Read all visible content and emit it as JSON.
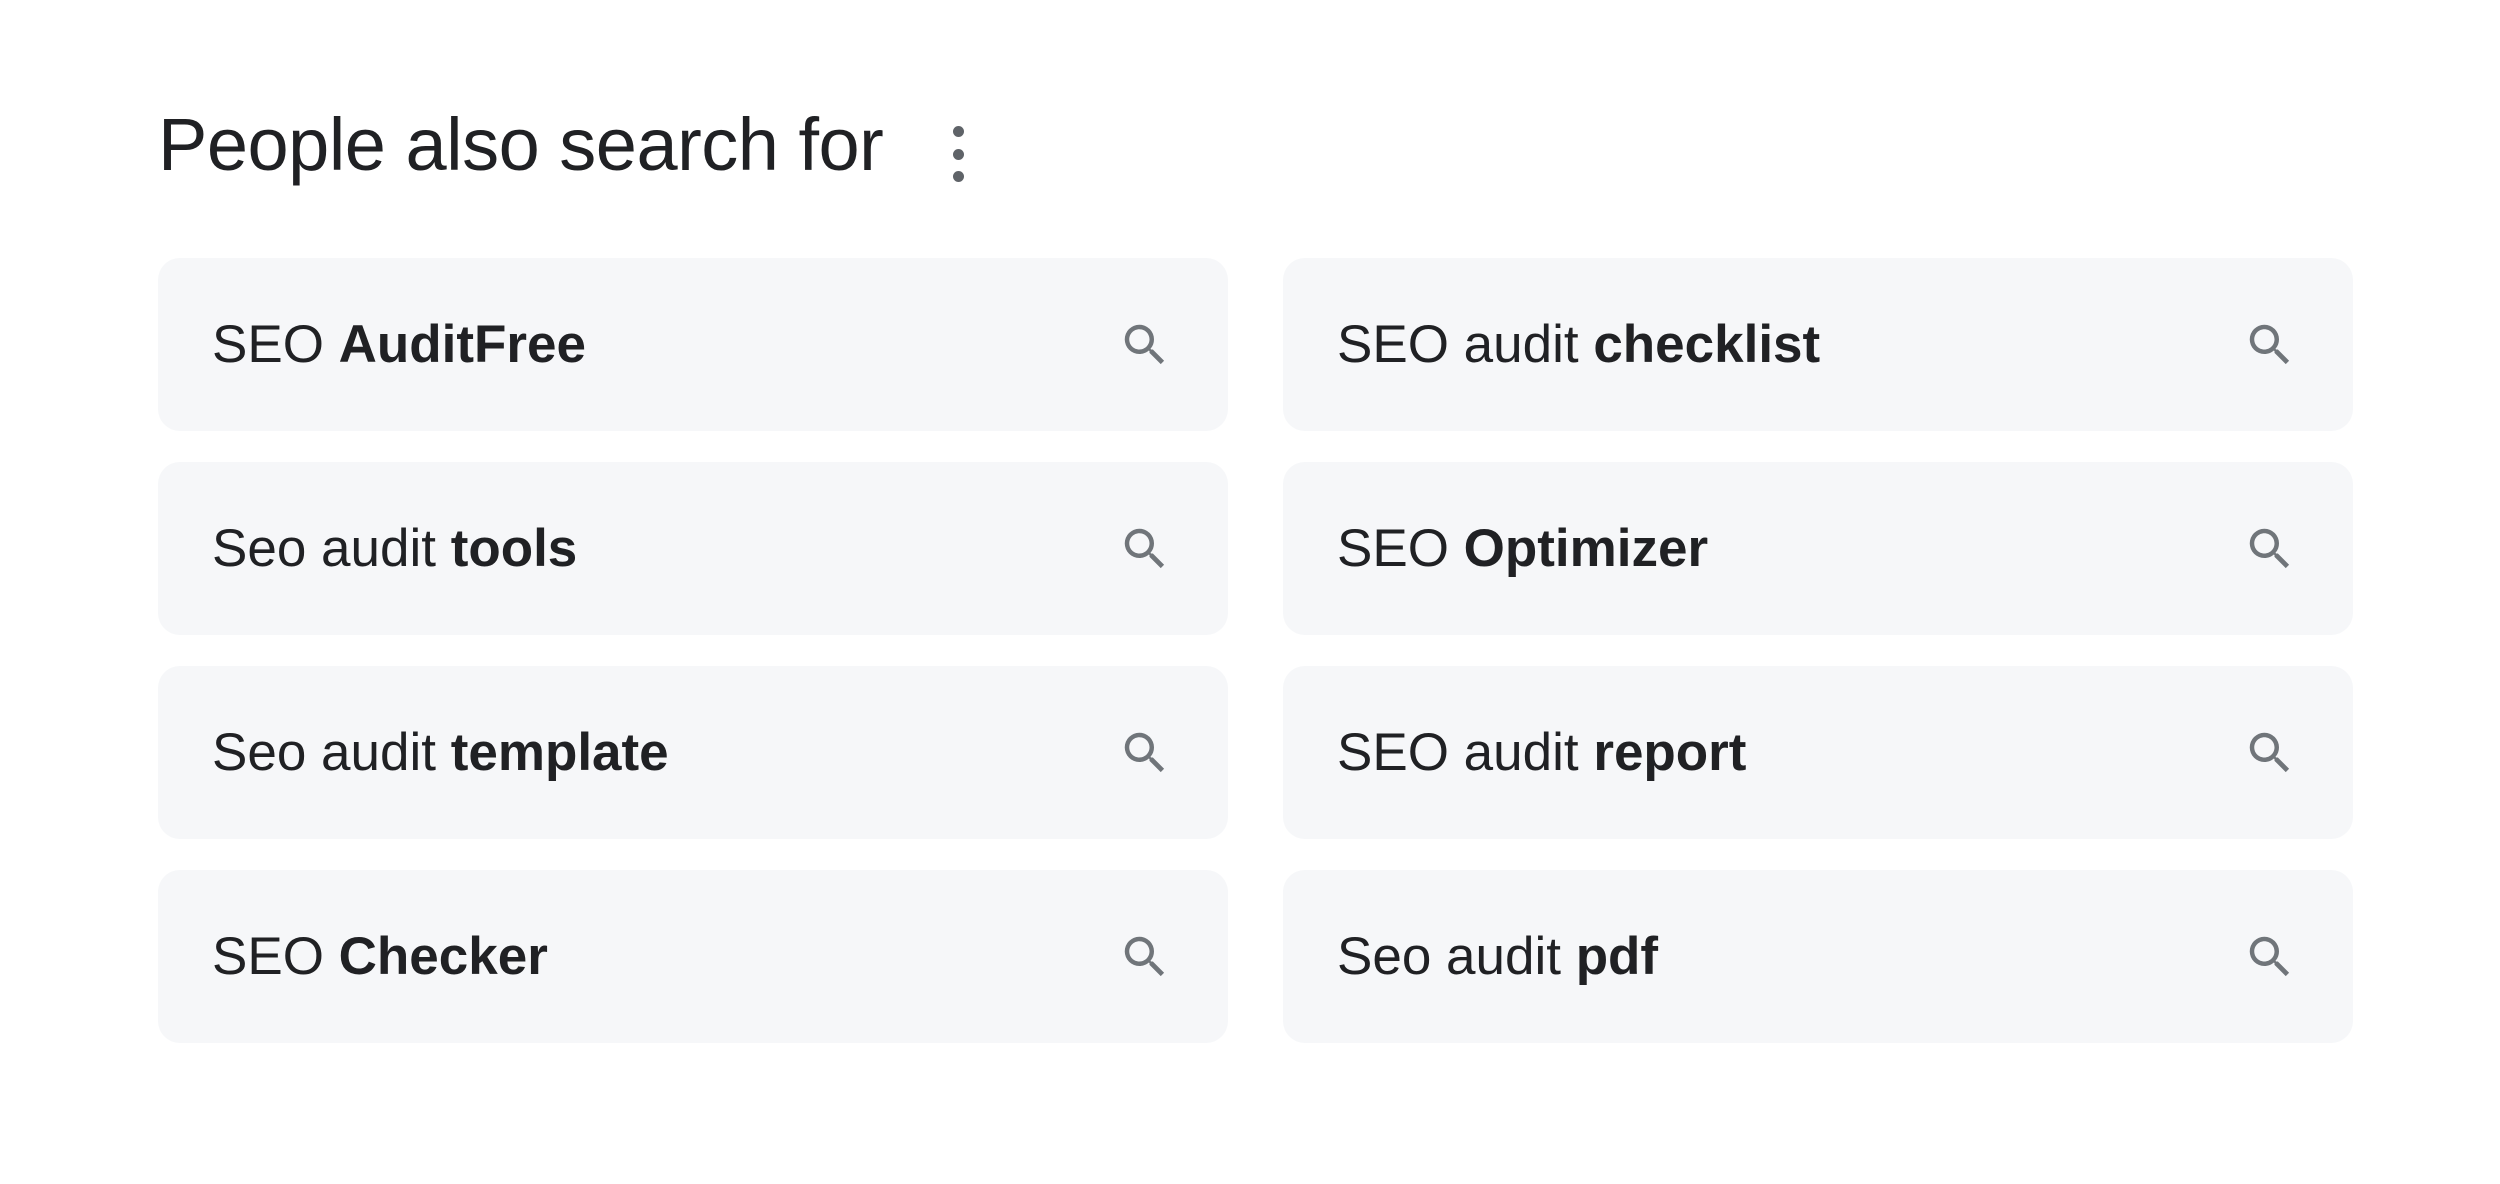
{
  "header": {
    "title": "People also search for",
    "more_icon": "more-vert-icon"
  },
  "items": [
    {
      "normal": "SEO ",
      "bold": "AuditFree"
    },
    {
      "normal": "SEO audit ",
      "bold": "checklist"
    },
    {
      "normal": "Seo audit ",
      "bold": "tools"
    },
    {
      "normal": "SEO ",
      "bold": "Optimizer"
    },
    {
      "normal": "Seo audit ",
      "bold": "template"
    },
    {
      "normal": "SEO audit ",
      "bold": "report"
    },
    {
      "normal": "SEO ",
      "bold": "Checker"
    },
    {
      "normal": "Seo audit ",
      "bold": "pdf"
    }
  ],
  "colors": {
    "card_bg": "#f6f7f9",
    "icon": "#70757a",
    "text": "#202124"
  }
}
